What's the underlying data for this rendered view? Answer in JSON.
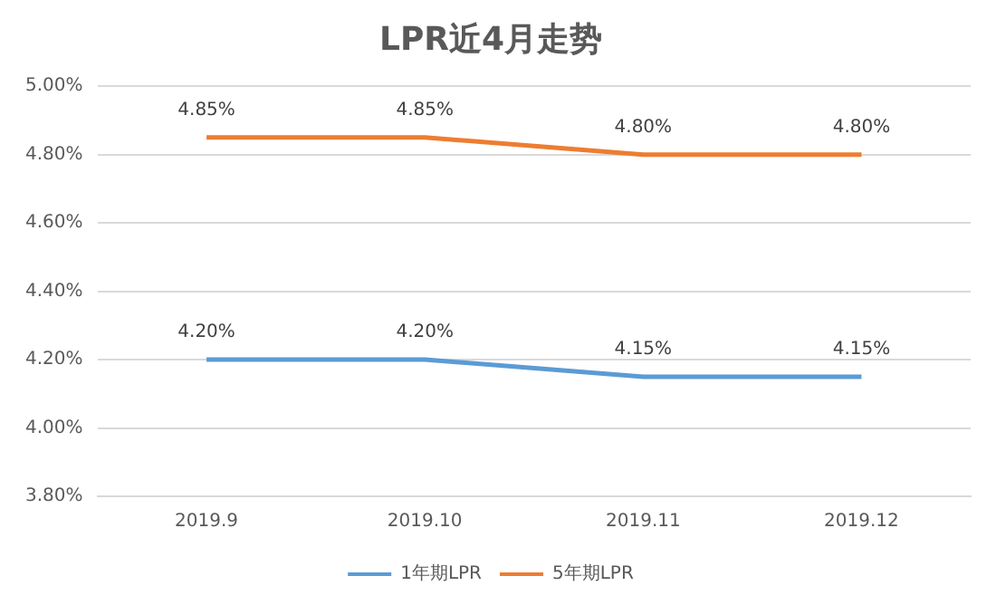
{
  "chart_data": {
    "type": "line",
    "title": "LPR近4月走势",
    "categories": [
      "2019.9",
      "2019.10",
      "2019.11",
      "2019.12"
    ],
    "series": [
      {
        "name": "1年期LPR",
        "color": "#5b9bd5",
        "values": [
          4.2,
          4.2,
          4.15,
          4.15
        ],
        "value_labels": [
          "4.20%",
          "4.20%",
          "4.15%",
          "4.15%"
        ]
      },
      {
        "name": "5年期LPR",
        "color": "#ed7d31",
        "values": [
          4.85,
          4.85,
          4.8,
          4.8
        ],
        "value_labels": [
          "4.85%",
          "4.85%",
          "4.80%",
          "4.80%"
        ]
      }
    ],
    "ylim": [
      3.8,
      5.0
    ],
    "yticks": [
      {
        "value": 3.8,
        "label": "3.80%"
      },
      {
        "value": 4.0,
        "label": "4.00%"
      },
      {
        "value": 4.2,
        "label": "4.20%"
      },
      {
        "value": 4.4,
        "label": "4.40%"
      },
      {
        "value": 4.6,
        "label": "4.60%"
      },
      {
        "value": 4.8,
        "label": "4.80%"
      },
      {
        "value": 5.0,
        "label": "5.00%"
      }
    ],
    "grid": "y",
    "legend": "bottom",
    "marker": "none",
    "line_style": "solid"
  }
}
